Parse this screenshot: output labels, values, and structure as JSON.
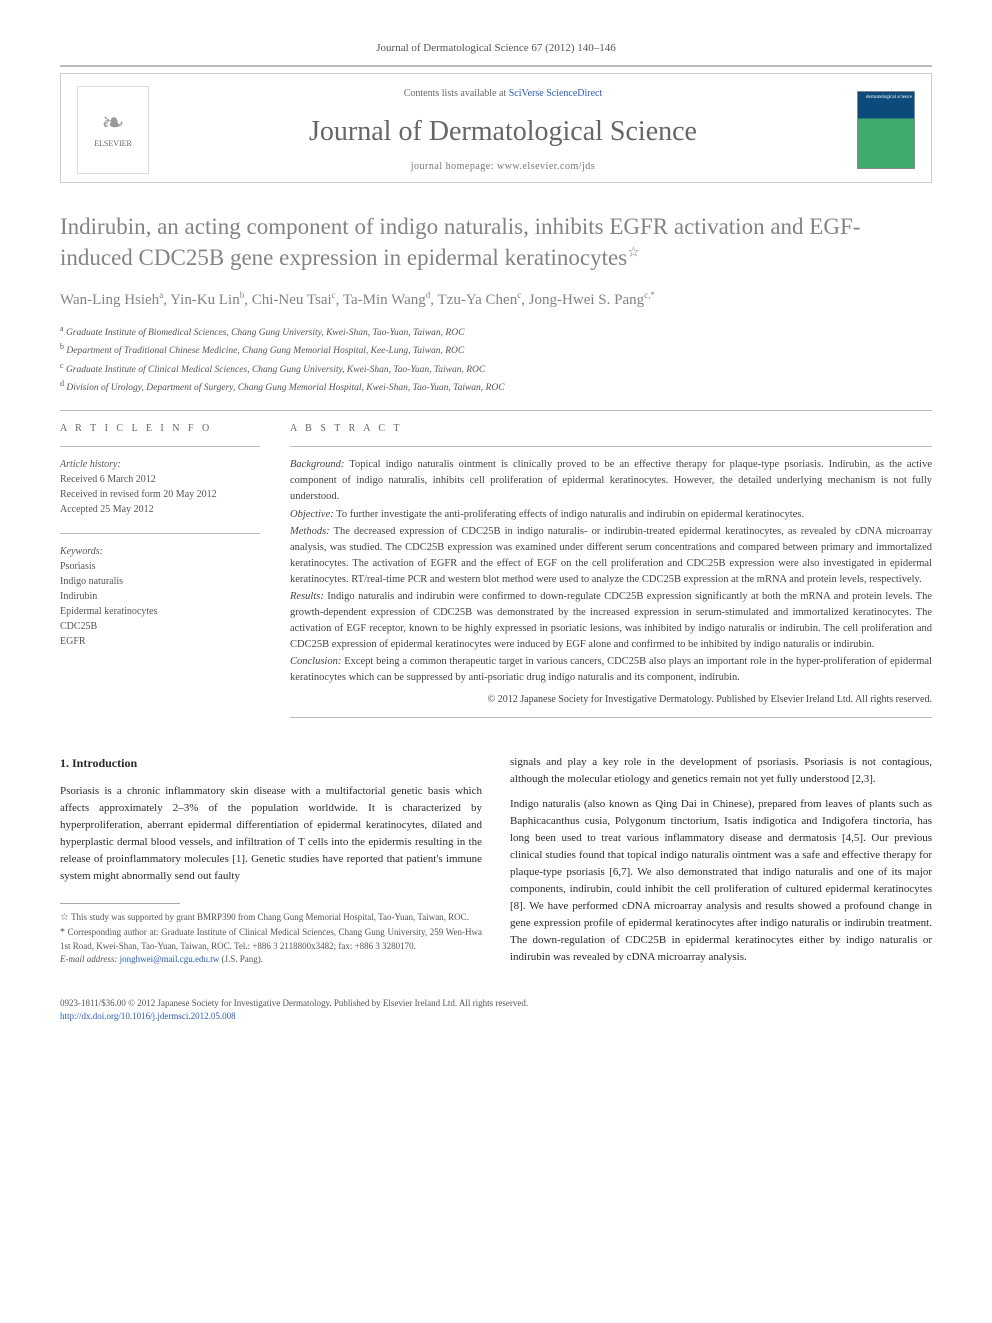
{
  "running_head": "Journal of Dermatological Science 67 (2012) 140–146",
  "masthead": {
    "contents_prefix": "Contents lists available at ",
    "contents_link": "SciVerse ScienceDirect",
    "journal_name": "Journal of Dermatological Science",
    "homepage_label": "journal homepage: www.elsevier.com/jds",
    "publisher": "ELSEVIER",
    "cover_text": "dermatological science"
  },
  "title": "Indirubin, an acting component of indigo naturalis, inhibits EGFR activation and EGF-induced CDC25B gene expression in epidermal keratinocytes",
  "title_note_marker": "☆",
  "authors_line": "Wan-Ling Hsieh",
  "authors": [
    {
      "name": "Wan-Ling Hsieh",
      "sup": "a"
    },
    {
      "name": "Yin-Ku Lin",
      "sup": "b"
    },
    {
      "name": "Chi-Neu Tsai",
      "sup": "c"
    },
    {
      "name": "Ta-Min Wang",
      "sup": "d"
    },
    {
      "name": "Tzu-Ya Chen",
      "sup": "c"
    },
    {
      "name": "Jong-Hwei S. Pang",
      "sup": "c,*"
    }
  ],
  "affiliations": [
    {
      "sup": "a",
      "text": "Graduate Institute of Biomedical Sciences, Chang Gung University, Kwei-Shan, Tao-Yuan, Taiwan, ROC"
    },
    {
      "sup": "b",
      "text": "Department of Traditional Chinese Medicine, Chang Gung Memorial Hospital, Kee-Lung, Taiwan, ROC"
    },
    {
      "sup": "c",
      "text": "Graduate Institute of Clinical Medical Sciences, Chang Gung University, Kwei-Shan, Tao-Yuan, Taiwan, ROC"
    },
    {
      "sup": "d",
      "text": "Division of Urology, Department of Surgery, Chang Gung Memorial Hospital, Kwei-Shan, Tao-Yuan, Taiwan, ROC"
    }
  ],
  "article_info": {
    "heading": "A R T I C L E   I N F O",
    "history_label": "Article history:",
    "history": [
      "Received 6 March 2012",
      "Received in revised form 20 May 2012",
      "Accepted 25 May 2012"
    ],
    "keywords_label": "Keywords:",
    "keywords": [
      "Psoriasis",
      "Indigo naturalis",
      "Indirubin",
      "Epidermal keratinocytes",
      "CDC25B",
      "EGFR"
    ]
  },
  "abstract": {
    "heading": "A B S T R A C T",
    "sections": [
      {
        "label": "Background:",
        "text": "Topical indigo naturalis ointment is clinically proved to be an effective therapy for plaque-type psoriasis. Indirubin, as the active component of indigo naturalis, inhibits cell proliferation of epidermal keratinocytes. However, the detailed underlying mechanism is not fully understood."
      },
      {
        "label": "Objective:",
        "text": "To further investigate the anti-proliferating effects of indigo naturalis and indirubin on epidermal keratinocytes."
      },
      {
        "label": "Methods:",
        "text": "The decreased expression of CDC25B in indigo naturalis- or indirubin-treated epidermal keratinocytes, as revealed by cDNA microarray analysis, was studied. The CDC25B expression was examined under different serum concentrations and compared between primary and immortalized keratinocytes. The activation of EGFR and the effect of EGF on the cell proliferation and CDC25B expression were also investigated in epidermal keratinocytes. RT/real-time PCR and western blot method were used to analyze the CDC25B expression at the mRNA and protein levels, respectively."
      },
      {
        "label": "Results:",
        "text": "Indigo naturalis and indirubin were confirmed to down-regulate CDC25B expression significantly at both the mRNA and protein levels. The growth-dependent expression of CDC25B was demonstrated by the increased expression in serum-stimulated and immortalized keratinocytes. The activation of EGF receptor, known to be highly expressed in psoriatic lesions, was inhibited by indigo naturalis or indirubin. The cell proliferation and CDC25B expression of epidermal keratinocytes were induced by EGF alone and confirmed to be inhibited by indigo naturalis or indirubin."
      },
      {
        "label": "Conclusion:",
        "text": "Except being a common therapeutic target in various cancers, CDC25B also plays an important role in the hyper-proliferation of epidermal keratinocytes which can be suppressed by anti-psoriatic drug indigo naturalis and its component, indirubin."
      }
    ],
    "copyright": "© 2012 Japanese Society for Investigative Dermatology. Published by Elsevier Ireland Ltd. All rights reserved."
  },
  "intro": {
    "heading": "1. Introduction",
    "para1": "Psoriasis is a chronic inflammatory skin disease with a multifactorial genetic basis which affects approximately 2–3% of the population worldwide. It is characterized by hyperproliferation, aberrant epidermal differentiation of epidermal keratinocytes, dilated and hyperplastic dermal blood vessels, and infiltration of T cells into the epidermis resulting in the release of proinflammatory molecules [1]. Genetic studies have reported that patient's immune system might abnormally send out faulty",
    "para2": "signals and play a key role in the development of psoriasis. Psoriasis is not contagious, although the molecular etiology and genetics remain not yet fully understood [2,3].",
    "para3": "Indigo naturalis (also known as Qing Dai in Chinese), prepared from leaves of plants such as Baphicacanthus cusia, Polygonum tinctorium, Isatis indigotica and Indigofera tinctoria, has long been used to treat various inflammatory disease and dermatosis [4,5]. Our previous clinical studies found that topical indigo naturalis ointment was a safe and effective therapy for plaque-type psoriasis [6,7]. We also demonstrated that indigo naturalis and one of its major components, indirubin, could inhibit the cell proliferation of cultured epidermal keratinocytes [8]. We have performed cDNA microarray analysis and results showed a profound change in gene expression profile of epidermal keratinocytes after indigo naturalis or indirubin treatment. The down-regulation of CDC25B in epidermal keratinocytes either by indigo naturalis or indirubin was revealed by cDNA microarray analysis."
  },
  "footnotes": {
    "funding": "This study was supported by grant BMRP390 from Chang Gung Memorial Hospital, Tao-Yuan, Taiwan, ROC.",
    "corresponding": "Corresponding author at: Graduate Institute of Clinical Medical Sciences, Chang Gung University, 259 Wen-Hwa 1st Road, Kwei-Shan, Tao-Yuan, Taiwan, ROC. Tel.: +886 3 2118800x3482; fax: +886 3 3280170.",
    "email_label": "E-mail address:",
    "email": "jonghwei@mail.cgu.edu.tw",
    "email_who": "(J.S. Pang)."
  },
  "bottom": {
    "issn_line": "0923-1811/$36.00 © 2012 Japanese Society for Investigative Dermatology. Published by Elsevier Ireland Ltd. All rights reserved.",
    "doi": "http://dx.doi.org/10.1016/j.jdermsci.2012.05.008"
  },
  "colors": {
    "link": "#2a5db0",
    "heading_gray": "#838383",
    "rule": "#bbbbbb"
  }
}
